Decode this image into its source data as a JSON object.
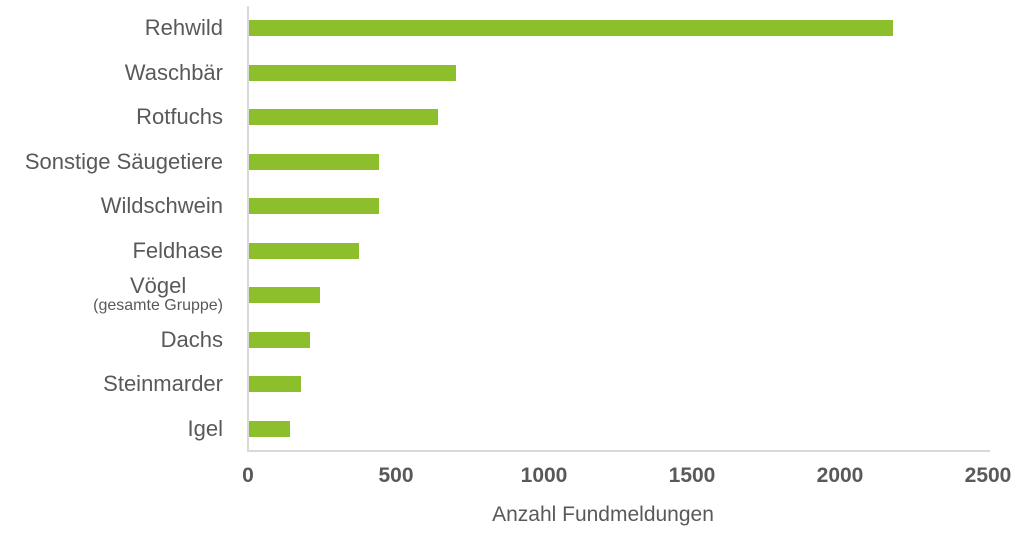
{
  "chart_data": {
    "type": "bar",
    "orientation": "horizontal",
    "categories": [
      "Rehwild",
      "Waschbär",
      "Rotfuchs",
      "Sonstige Säugetiere",
      "Wildschwein",
      "Feldhase",
      "Vögel\n(gesamte Gruppe)",
      "Dachs",
      "Steinmarder",
      "Igel"
    ],
    "values": [
      2175,
      700,
      640,
      440,
      440,
      370,
      240,
      205,
      175,
      140
    ],
    "title": "",
    "xlabel": "Anzahl Fundmeldungen",
    "ylabel": "",
    "xlim": [
      0,
      2500
    ],
    "xticks": [
      0,
      500,
      1000,
      1500,
      2000,
      2500
    ],
    "grid": false,
    "legend": false,
    "bar_color": "#8dbe2c",
    "axis_line_color": "#d9d9d9",
    "text_color": "#595959"
  }
}
